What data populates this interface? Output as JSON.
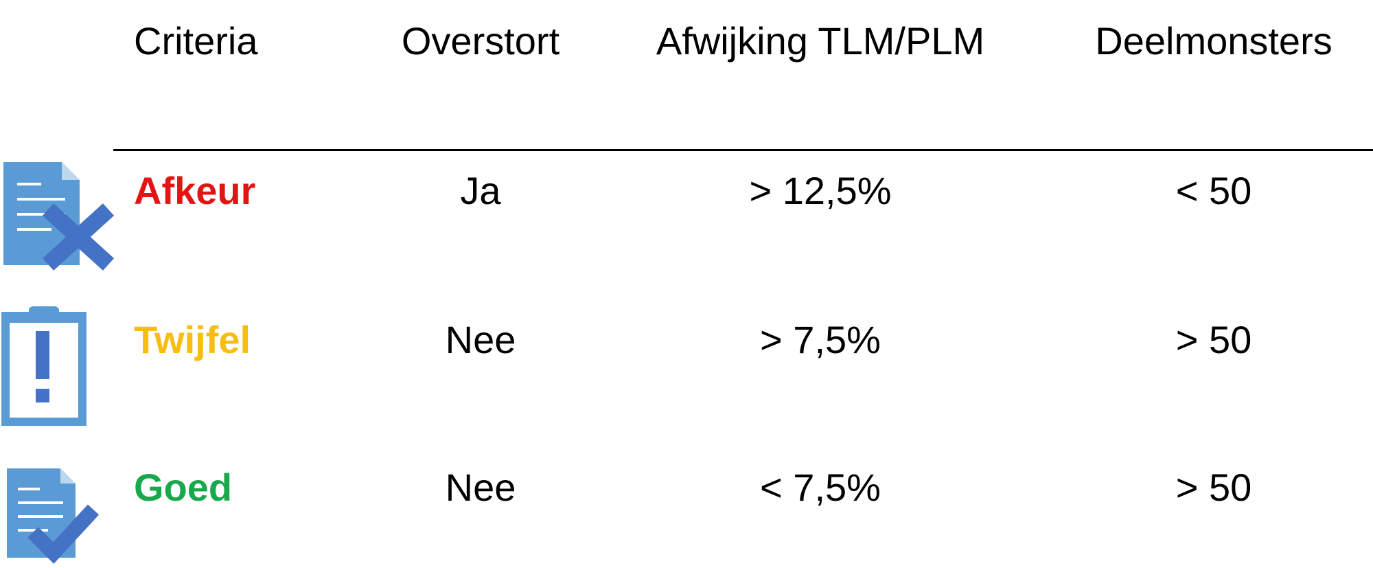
{
  "table": {
    "header": [
      "Criteria",
      "Overstort",
      "Afwijking TLM/PLM",
      "Deelmonsters"
    ],
    "rows": [
      [
        "Afkeur",
        "Ja",
        "> 12,5%",
        "< 50"
      ],
      [
        "Twijfel",
        "Nee",
        "> 7,5%",
        "> 50"
      ],
      [
        "Goed",
        "Nee",
        "< 7,5%",
        "> 50"
      ]
    ]
  }
}
